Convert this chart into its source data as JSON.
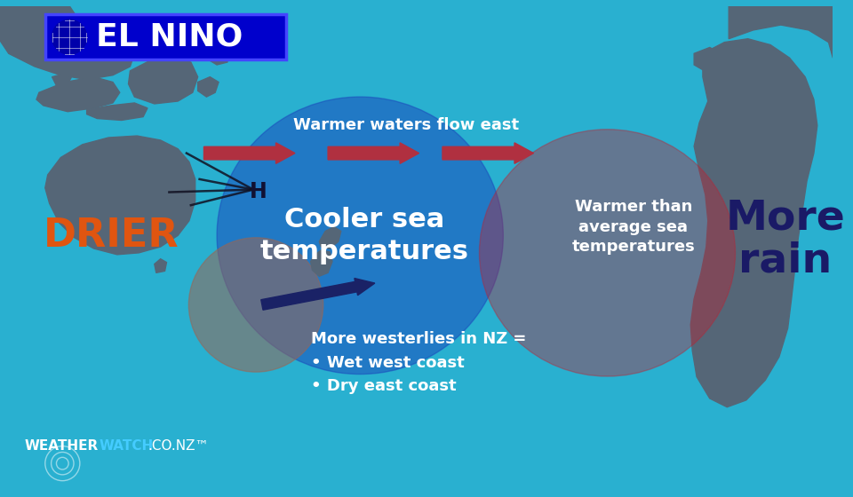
{
  "bg_color": "#29b0d0",
  "title": "EL NINO",
  "title_bg": "#0000cc",
  "title_border": "#4444ff",
  "warmer_waters_text": "Warmer waters flow east",
  "cooler_sea_text": "Cooler sea\ntemperatures",
  "warmer_than_avg_text": "Warmer than\naverage sea\ntemperatures",
  "drier_text": "DRIER",
  "more_rain_text": "More\nrain",
  "westerlies_text": "More westerlies in NZ =\n• Wet west coast\n• Dry east coast",
  "h_label": "H",
  "arrow_red_color": "#b03040",
  "blue_blob_color": "#1a44bb",
  "red_blob_color": "#bb2233",
  "brown_blob_color": "#996655",
  "drier_color": "#e05510",
  "more_rain_color": "#1a1a66",
  "land_color": "#556677",
  "wind_arrow_color": "#1a2266"
}
